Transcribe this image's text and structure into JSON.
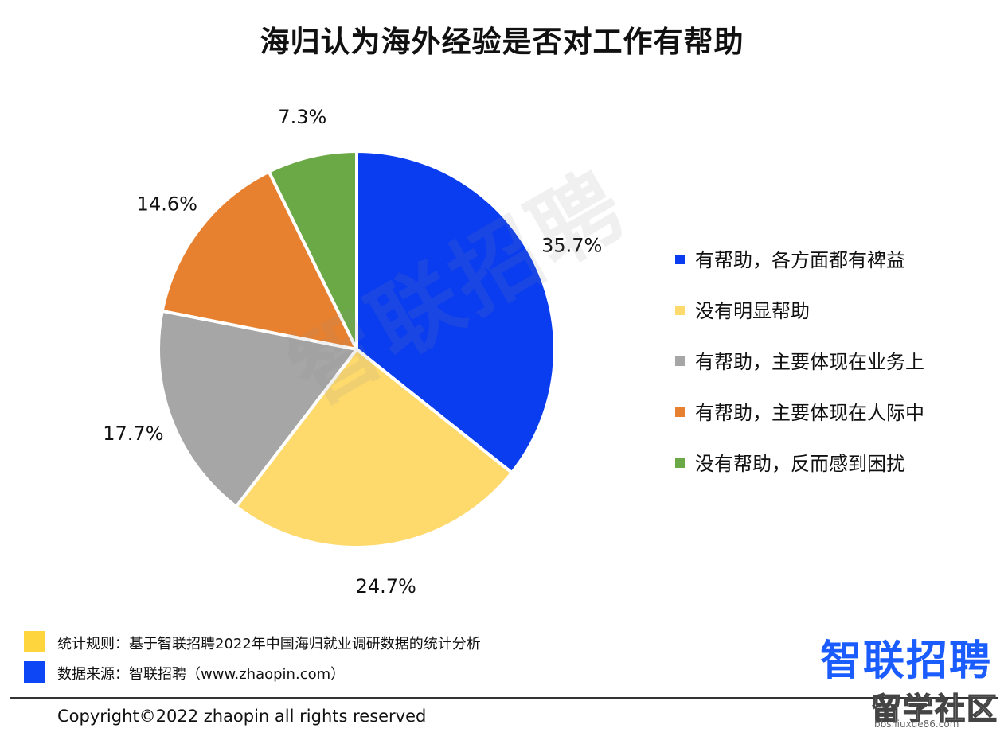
{
  "chart_data": {
    "type": "pie",
    "title": "海归认为海外经验是否对工作有帮助",
    "categories": [
      "有帮助，各方面都有裨益",
      "没有明显帮助",
      "有帮助，主要体现在业务上",
      "有帮助，主要体现在人际中",
      "没有帮助，反而感到困扰"
    ],
    "values": [
      35.7,
      24.7,
      17.7,
      14.6,
      7.3
    ],
    "value_labels": [
      "35.7%",
      "24.7%",
      "17.7%",
      "14.6%",
      "7.3%"
    ],
    "colors": [
      "#0a3cf0",
      "#fed96c",
      "#a6a6a6",
      "#e8812f",
      "#6aa945"
    ],
    "legend_position": "right",
    "start_angle": "12 o'clock",
    "direction": "clockwise"
  },
  "notes": [
    {
      "text": "统计规则：基于智联招聘2022年中国海归就业调研数据的统计分析",
      "color": "#fed53d"
    },
    {
      "text": "数据来源：智联招聘（www.zhaopin.com）",
      "color": "#0d47f5"
    }
  ],
  "brand": {
    "logo_text": "智联招聘",
    "color": "#1b5cff"
  },
  "watermark": "智联招聘",
  "copyright": "Copyright©2022 zhaopin all rights reserved",
  "corner_mark": {
    "text": "留学社区",
    "subtext": "bbs.liuxue86.com"
  }
}
